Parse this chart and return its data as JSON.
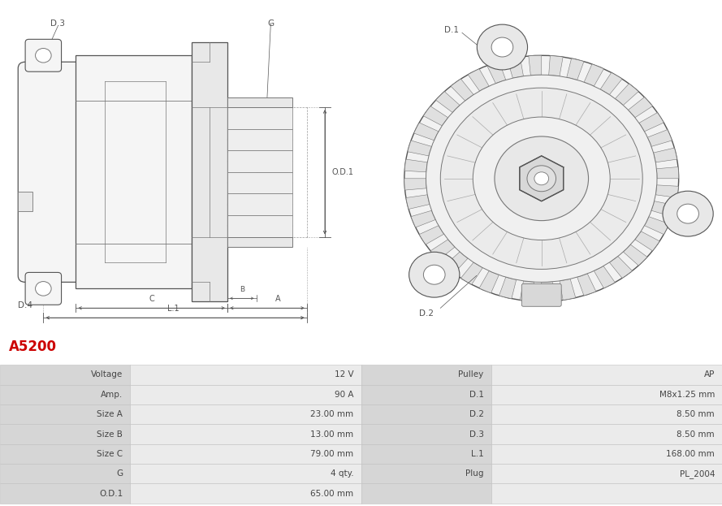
{
  "title": "A5200",
  "title_color": "#cc0000",
  "bg_color": "#ffffff",
  "table_data": [
    [
      "Voltage",
      "12 V",
      "Pulley",
      "AP"
    ],
    [
      "Amp.",
      "90 A",
      "D.1",
      "M8x1.25 mm"
    ],
    [
      "Size A",
      "23.00 mm",
      "D.2",
      "8.50 mm"
    ],
    [
      "Size B",
      "13.00 mm",
      "D.3",
      "8.50 mm"
    ],
    [
      "Size C",
      "79.00 mm",
      "L.1",
      "168.00 mm"
    ],
    [
      "G",
      "4 qty.",
      "Plug",
      "PL_2004"
    ],
    [
      "O.D.1",
      "65.00 mm",
      "",
      ""
    ]
  ],
  "lc": "#777777",
  "lc_dark": "#555555",
  "fc_light": "#f5f5f5",
  "fc_mid": "#e8e8e8",
  "fc_dark": "#d8d8d8",
  "dim_color": "#555555",
  "text_color": "#444444",
  "fig_width": 8.89,
  "fig_height": 6.23
}
